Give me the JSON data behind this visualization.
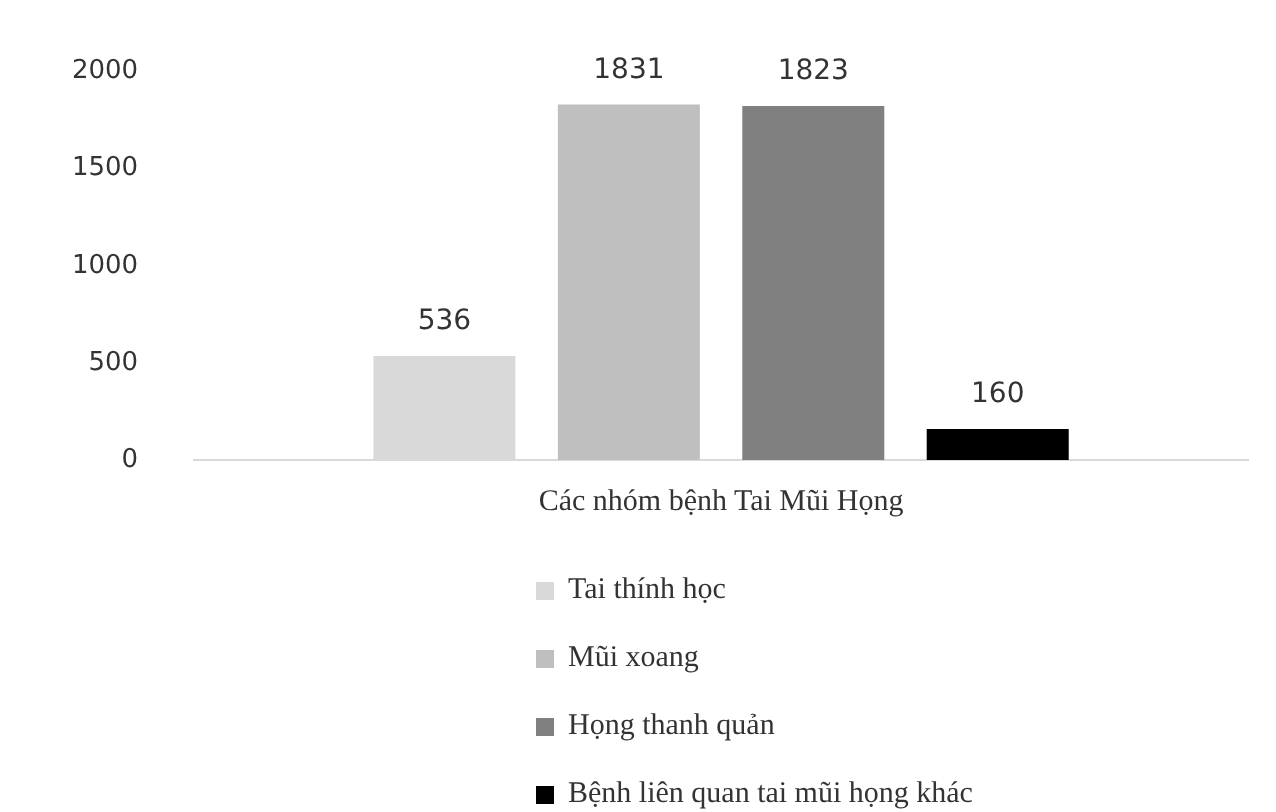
{
  "chart_data": {
    "type": "bar",
    "categories": [
      "Các nhóm bệnh Tai Mũi Họng"
    ],
    "series": [
      {
        "name": "Tai thính học",
        "color": "#d9d9d9",
        "values": [
          536
        ]
      },
      {
        "name": "Mũi xoang",
        "color": "#bfbfbf",
        "values": [
          1831
        ]
      },
      {
        "name": "Họng thanh quản",
        "color": "#808080",
        "values": [
          1823
        ]
      },
      {
        "name": "Bệnh liên quan tai mũi họng khác",
        "color": "#000000",
        "values": [
          160
        ]
      }
    ],
    "ylim": [
      0,
      2000
    ],
    "yticks": [
      0,
      500,
      1000,
      1500,
      2000
    ],
    "grid": false,
    "legend": "bottom",
    "data_labels": true
  }
}
